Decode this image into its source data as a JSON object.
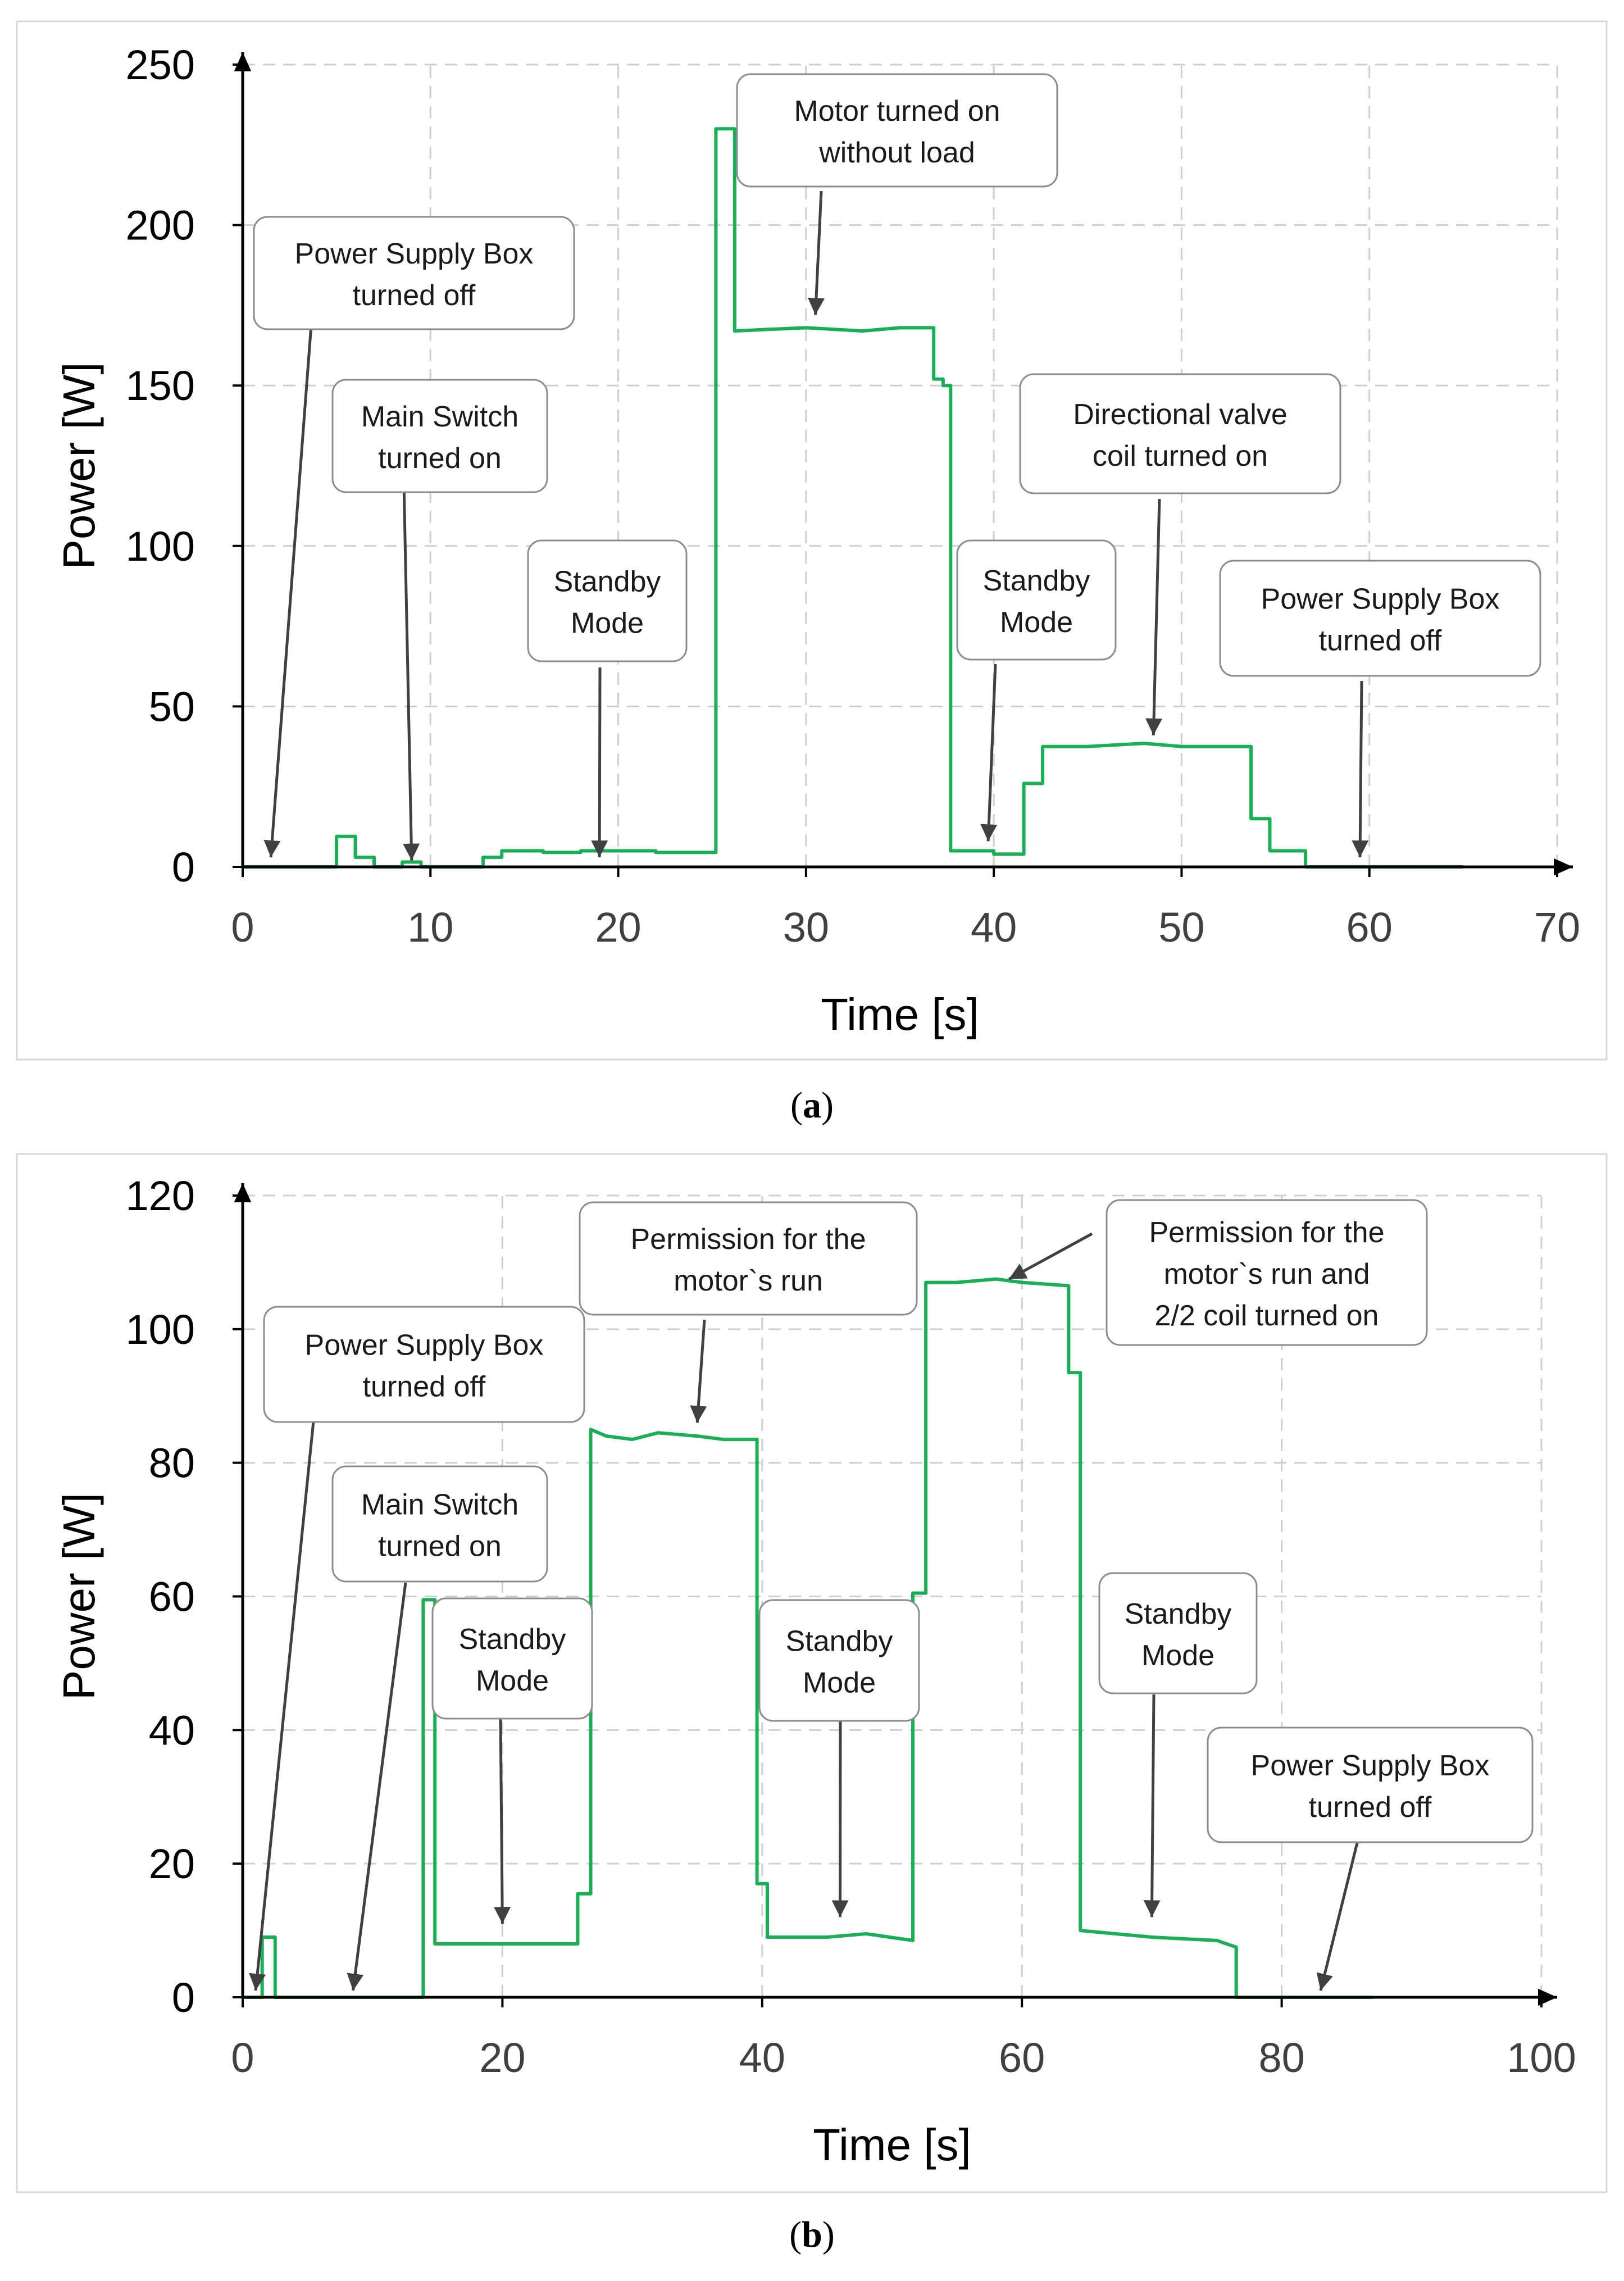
{
  "figure": {
    "colors": {
      "series": "#1aaf55",
      "grid": "#cfcfcf",
      "axis": "#000000",
      "tick_text": "#404040",
      "label_text": "#000000",
      "box_border": "#8c8c8c",
      "frame": "#d9d9d9"
    }
  },
  "chart_data": [
    {
      "id": "a",
      "type": "line",
      "caption_prefix": "(",
      "caption_letter": "a",
      "caption_suffix": ")",
      "xlabel": "Time [s]",
      "ylabel": "Power [W]",
      "xlim": [
        0,
        70
      ],
      "ylim": [
        0,
        250
      ],
      "xticks": [
        0,
        10,
        20,
        30,
        40,
        50,
        60,
        70
      ],
      "yticks": [
        0,
        50,
        100,
        150,
        200,
        250
      ],
      "grid": true,
      "series": [
        {
          "name": "Power",
          "points": [
            [
              0,
              0
            ],
            [
              5,
              0
            ],
            [
              5,
              9.5
            ],
            [
              6,
              9.5
            ],
            [
              6,
              3
            ],
            [
              7,
              3
            ],
            [
              7,
              0
            ],
            [
              8.5,
              0
            ],
            [
              8.5,
              1.5
            ],
            [
              9.5,
              1.5
            ],
            [
              9.5,
              0
            ],
            [
              12.8,
              0
            ],
            [
              12.8,
              3
            ],
            [
              13.8,
              3
            ],
            [
              13.8,
              5
            ],
            [
              16,
              5
            ],
            [
              16,
              4.5
            ],
            [
              18,
              4.5
            ],
            [
              18,
              5
            ],
            [
              22,
              5
            ],
            [
              22,
              4.5
            ],
            [
              25.2,
              4.5
            ],
            [
              25.2,
              230
            ],
            [
              26.2,
              230
            ],
            [
              26.2,
              167
            ],
            [
              28,
              167.5
            ],
            [
              30,
              168
            ],
            [
              33,
              167
            ],
            [
              35,
              168
            ],
            [
              36.8,
              168
            ],
            [
              36.8,
              152
            ],
            [
              37.3,
              152
            ],
            [
              37.3,
              150
            ],
            [
              37.7,
              150
            ],
            [
              37.7,
              5
            ],
            [
              40,
              5
            ],
            [
              40,
              4
            ],
            [
              41.6,
              4
            ],
            [
              41.6,
              26
            ],
            [
              42.6,
              26
            ],
            [
              42.6,
              37.5
            ],
            [
              45,
              37.5
            ],
            [
              48,
              38.5
            ],
            [
              50,
              37.5
            ],
            [
              53.7,
              37.5
            ],
            [
              53.7,
              15
            ],
            [
              54.7,
              15
            ],
            [
              54.7,
              5
            ],
            [
              56.6,
              5
            ],
            [
              56.6,
              0
            ],
            [
              65,
              0
            ]
          ]
        }
      ],
      "annotations": [
        {
          "text": "Power Supply Box\nturned off",
          "target": [
            1.5,
            3
          ]
        },
        {
          "text": "Main Switch\nturned on",
          "target": [
            9,
            2
          ]
        },
        {
          "text": "Standby\nMode",
          "target": [
            19,
            3
          ]
        },
        {
          "text": "Motor turned on\nwithout load",
          "target": [
            30.5,
            172
          ]
        },
        {
          "text": "Standby\nMode",
          "target": [
            39.7,
            8
          ]
        },
        {
          "text": "Directional valve\ncoil turned on",
          "target": [
            48.5,
            41
          ]
        },
        {
          "text": "Power Supply Box\nturned off",
          "target": [
            59.5,
            3
          ]
        }
      ]
    },
    {
      "id": "b",
      "type": "line",
      "caption_prefix": "(",
      "caption_letter": "b",
      "caption_suffix": ")",
      "xlabel": "Time [s]",
      "ylabel": "Power [W]",
      "xlim": [
        0,
        100
      ],
      "ylim": [
        0,
        120
      ],
      "xticks": [
        0,
        20,
        40,
        60,
        80,
        100
      ],
      "yticks": [
        0,
        20,
        40,
        60,
        80,
        100,
        120
      ],
      "grid": true,
      "series": [
        {
          "name": "Power",
          "points": [
            [
              0,
              0
            ],
            [
              1.5,
              0
            ],
            [
              1.5,
              9
            ],
            [
              2.5,
              9
            ],
            [
              2.5,
              0
            ],
            [
              13.9,
              0
            ],
            [
              13.9,
              59.5
            ],
            [
              14.8,
              59.5
            ],
            [
              14.8,
              8
            ],
            [
              20,
              8
            ],
            [
              25.8,
              8
            ],
            [
              25.8,
              15.5
            ],
            [
              26.8,
              15.5
            ],
            [
              26.8,
              85
            ],
            [
              28,
              84
            ],
            [
              30,
              83.5
            ],
            [
              32,
              84.5
            ],
            [
              35,
              84
            ],
            [
              37,
              83.5
            ],
            [
              39.6,
              83.5
            ],
            [
              39.6,
              17
            ],
            [
              40.4,
              17
            ],
            [
              40.4,
              9
            ],
            [
              45,
              9
            ],
            [
              48,
              9.5
            ],
            [
              51.6,
              8.5
            ],
            [
              51.6,
              60.5
            ],
            [
              52.6,
              60.5
            ],
            [
              52.6,
              107
            ],
            [
              55,
              107
            ],
            [
              58,
              107.5
            ],
            [
              60,
              107
            ],
            [
              63.6,
              106.5
            ],
            [
              63.6,
              93.5
            ],
            [
              64.5,
              93.5
            ],
            [
              64.5,
              10
            ],
            [
              70,
              9
            ],
            [
              75,
              8.5
            ],
            [
              76.5,
              7.5
            ],
            [
              76.5,
              0
            ],
            [
              87,
              0
            ]
          ]
        }
      ],
      "annotations": [
        {
          "text": "Power Supply Box\nturned off",
          "target": [
            1,
            1
          ]
        },
        {
          "text": "Main Switch\nturned on",
          "target": [
            8.5,
            1
          ]
        },
        {
          "text": "Standby\nMode",
          "target": [
            20,
            11
          ]
        },
        {
          "text": "Permission for the\nmotor`s run",
          "target": [
            35,
            86
          ]
        },
        {
          "text": "Standby\nMode",
          "target": [
            46,
            12
          ]
        },
        {
          "text": "Permission for the\nmotor`s run and\n2/2 coil turned on",
          "target": [
            59,
            107.5
          ]
        },
        {
          "text": "Standby\nMode",
          "target": [
            70,
            12
          ]
        },
        {
          "text": "Power Supply Box\nturned off",
          "target": [
            83,
            1
          ]
        }
      ]
    }
  ]
}
